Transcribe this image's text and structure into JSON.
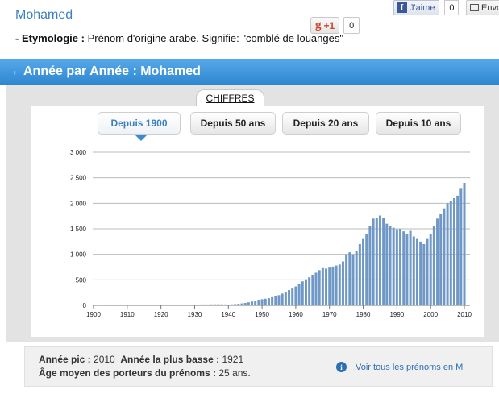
{
  "header": {
    "name": "Mohamed",
    "etymology_label": "- Etymologie :",
    "etymology_text": " Prénom d'origine arabe. Signifie: \"comblé de louanges\""
  },
  "social": {
    "gplus_label": "+1",
    "gplus_count": "0",
    "facebook_label": "J'aime",
    "facebook_count": "0",
    "share_label": "Envoyer"
  },
  "section": {
    "title": "Année par Année : Mohamed"
  },
  "chart_tab": {
    "label": "CHIFFRES"
  },
  "periods": [
    {
      "label": "Depuis 1900",
      "active": true
    },
    {
      "label": "Depuis 50 ans",
      "active": false
    },
    {
      "label": "Depuis 20 ans",
      "active": false
    },
    {
      "label": "Depuis 10 ans",
      "active": false
    }
  ],
  "chart_data": {
    "type": "bar",
    "bar_color": "#6f98c6",
    "ylim": [
      0,
      3000
    ],
    "yticks": [
      0,
      500,
      1000,
      1500,
      2000,
      2500,
      3000
    ],
    "ytick_labels": [
      "0",
      "500",
      "1 000",
      "1 500",
      "2 000",
      "2 500",
      "3 000"
    ],
    "xticks": [
      1900,
      1910,
      1920,
      1930,
      1940,
      1950,
      1960,
      1970,
      1980,
      1990,
      2000,
      2010
    ],
    "grid": true,
    "x": [
      1900,
      1901,
      1902,
      1903,
      1904,
      1905,
      1906,
      1907,
      1908,
      1909,
      1910,
      1911,
      1912,
      1913,
      1914,
      1915,
      1916,
      1917,
      1918,
      1919,
      1920,
      1921,
      1922,
      1923,
      1924,
      1925,
      1926,
      1927,
      1928,
      1929,
      1930,
      1931,
      1932,
      1933,
      1934,
      1935,
      1936,
      1937,
      1938,
      1939,
      1940,
      1941,
      1942,
      1943,
      1944,
      1945,
      1946,
      1947,
      1948,
      1949,
      1950,
      1951,
      1952,
      1953,
      1954,
      1955,
      1956,
      1957,
      1958,
      1959,
      1960,
      1961,
      1962,
      1963,
      1964,
      1965,
      1966,
      1967,
      1968,
      1969,
      1970,
      1971,
      1972,
      1973,
      1974,
      1975,
      1976,
      1977,
      1978,
      1979,
      1980,
      1981,
      1982,
      1983,
      1984,
      1985,
      1986,
      1987,
      1988,
      1989,
      1990,
      1991,
      1992,
      1993,
      1994,
      1995,
      1996,
      1997,
      1998,
      1999,
      2000,
      2001,
      2002,
      2003,
      2004,
      2005,
      2006,
      2007,
      2008,
      2009,
      2010
    ],
    "values": [
      6,
      5,
      6,
      6,
      5,
      6,
      7,
      7,
      6,
      7,
      7,
      6,
      7,
      8,
      8,
      7,
      6,
      7,
      8,
      9,
      9,
      4,
      10,
      10,
      11,
      12,
      13,
      14,
      15,
      14,
      16,
      15,
      17,
      18,
      17,
      19,
      20,
      21,
      20,
      18,
      16,
      20,
      25,
      30,
      38,
      48,
      60,
      75,
      90,
      110,
      120,
      130,
      140,
      160,
      180,
      200,
      230,
      260,
      300,
      330,
      370,
      420,
      470,
      510,
      550,
      600,
      640,
      690,
      730,
      720,
      740,
      760,
      780,
      800,
      860,
      1000,
      1040,
      1000,
      1070,
      1200,
      1300,
      1400,
      1550,
      1700,
      1720,
      1760,
      1720,
      1600,
      1550,
      1520,
      1490,
      1500,
      1450,
      1400,
      1460,
      1350,
      1300,
      1250,
      1200,
      1300,
      1400,
      1550,
      1700,
      1800,
      1900,
      2000,
      2050,
      2100,
      2150,
      2300,
      2400
    ]
  },
  "stats": {
    "peak_label": "Année pic :",
    "peak_value": " 2010",
    "lowest_label": "Année la plus basse :",
    "lowest_value": " 1921",
    "avg_label": "Âge moyen des porteurs du prénoms :",
    "avg_value": " 25 ans.",
    "link_text": "Voir tous les prénoms en M"
  }
}
